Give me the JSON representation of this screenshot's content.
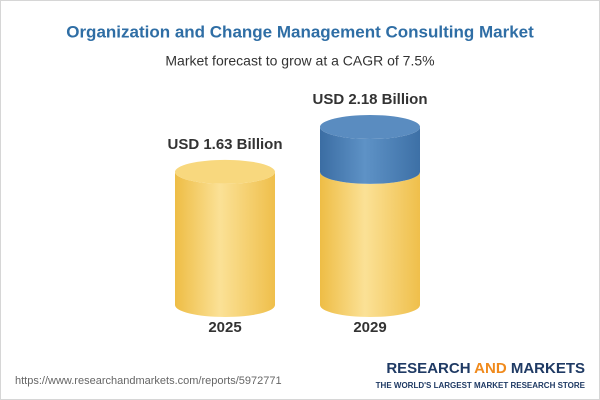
{
  "chart_data": {
    "type": "cylinder",
    "title": "Organization and Change Management Consulting Market",
    "subtitle": "Market forecast to grow at a CAGR of 7.5%",
    "categories": [
      "2025",
      "2029"
    ],
    "values": [
      1.63,
      2.18
    ],
    "value_labels": [
      "USD 1.63 Billion",
      "USD 2.18 Billion"
    ],
    "color": "#f3c95c",
    "growth_color": "#4a7fb5"
  },
  "footer": {
    "url": "https://www.researchandmarkets.com/reports/5972771",
    "brand": [
      "RESEARCH",
      "AND",
      "MARKETS"
    ],
    "tagline": "THE WORLD'S LARGEST MARKET RESEARCH STORE"
  }
}
